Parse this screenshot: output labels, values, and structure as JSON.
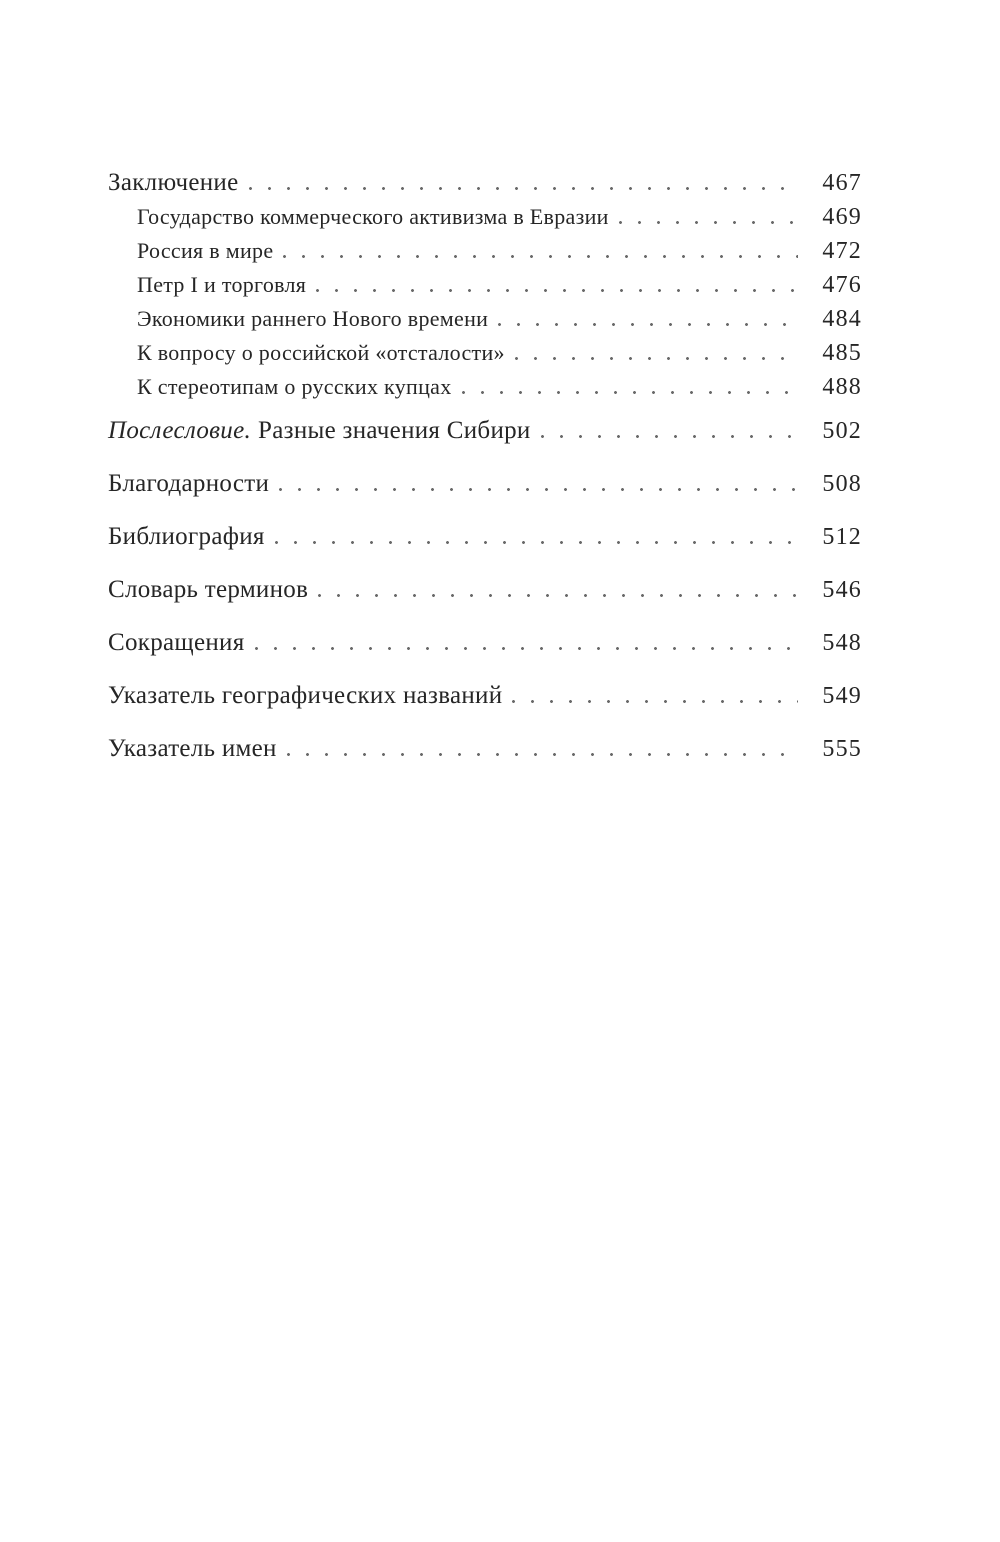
{
  "document": {
    "kind": "book-table-of-contents",
    "language": "ru",
    "colors": {
      "background": "#ffffff",
      "text": "#262626",
      "dot_leader": "#6a6a6a"
    }
  },
  "toc": {
    "entries": [
      {
        "label": "Заключение",
        "page": "467",
        "level": 0
      },
      {
        "label": "Государство коммерческого активизма в Евразии",
        "page": "469",
        "level": 1
      },
      {
        "label": "Россия в мире",
        "page": "472",
        "level": 1
      },
      {
        "label": "Петр I и торговля",
        "page": "476",
        "level": 1
      },
      {
        "label": "Экономики раннего Нового времени",
        "page": "484",
        "level": 1
      },
      {
        "label": "К вопросу о российской «отсталости»",
        "page": "485",
        "level": 1
      },
      {
        "label": "К стереотипам о русских купцах",
        "page": "488",
        "level": 1
      },
      {
        "label_italic": "Послесловие.",
        "label": "Разные значения Сибири",
        "page": "502",
        "level": 0
      },
      {
        "label": "Благодарности",
        "page": "508",
        "level": 0
      },
      {
        "label": "Библиография",
        "page": "512",
        "level": 0
      },
      {
        "label": "Словарь терминов",
        "page": "546",
        "level": 0
      },
      {
        "label": "Сокращения",
        "page": "548",
        "level": 0
      },
      {
        "label": "Указатель географических названий",
        "page": "549",
        "level": 0
      },
      {
        "label": "Указатель имен",
        "page": "555",
        "level": 0
      }
    ]
  }
}
